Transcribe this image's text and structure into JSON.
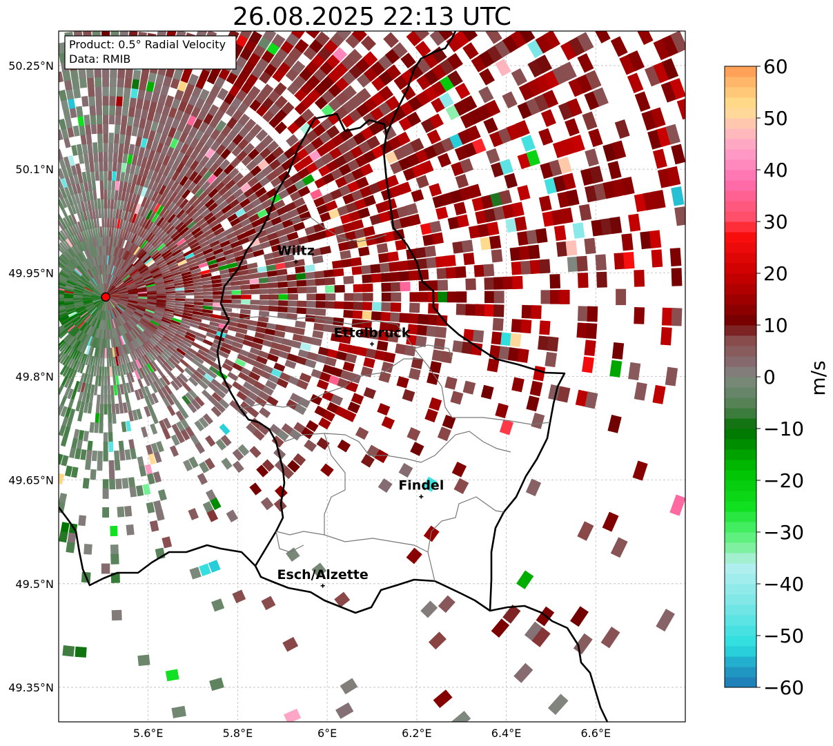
{
  "title": "26.08.2025 22:13 UTC",
  "info_box": {
    "product": "Product: 0.5° Radial Velocity",
    "data": "Data: RMIB"
  },
  "axes": {
    "x_ticks": [
      "5.6°E",
      "5.8°E",
      "6°E",
      "6.2°E",
      "6.4°E",
      "6.6°E"
    ],
    "x_values": [
      5.6,
      5.8,
      6.0,
      6.2,
      6.4,
      6.6
    ],
    "y_ticks": [
      "50.25°N",
      "50.1°N",
      "49.95°N",
      "49.8°N",
      "49.65°N",
      "49.5°N",
      "49.35°N"
    ],
    "y_values": [
      50.25,
      50.1,
      49.95,
      49.8,
      49.65,
      49.5,
      49.35
    ],
    "lon_range": [
      5.4,
      6.8
    ],
    "lat_range": [
      49.3,
      50.3
    ],
    "grid": true
  },
  "radar_site": {
    "lon": 5.505,
    "lat": 49.915,
    "color": "#ff0000"
  },
  "cities": [
    {
      "name": "Wiltz",
      "lon": 5.93,
      "lat": 49.966
    },
    {
      "name": "Ettelbruck",
      "lon": 6.1,
      "lat": 49.847
    },
    {
      "name": "Findel",
      "lon": 6.21,
      "lat": 49.626
    },
    {
      "name": "Esch/Alzette",
      "lon": 5.99,
      "lat": 49.497
    }
  ],
  "colorbar": {
    "label": "m/s",
    "min": -60,
    "max": 60,
    "ticks": [
      "60",
      "50",
      "40",
      "30",
      "20",
      "10",
      "0",
      "−10",
      "−20",
      "−30",
      "−40",
      "−50",
      "−60"
    ],
    "tick_values": [
      60,
      50,
      40,
      30,
      20,
      10,
      0,
      -10,
      -20,
      -30,
      -40,
      -50,
      -60
    ],
    "colors": [
      {
        "v": -60,
        "c": "#1f77b4"
      },
      {
        "v": -56,
        "c": "#20a0c8"
      },
      {
        "v": -52,
        "c": "#2adede"
      },
      {
        "v": -44,
        "c": "#7ae6e6"
      },
      {
        "v": -36,
        "c": "#b8f0f0"
      },
      {
        "v": -34,
        "c": "#8ef0b0"
      },
      {
        "v": -30,
        "c": "#50f070"
      },
      {
        "v": -25,
        "c": "#10e020"
      },
      {
        "v": -18,
        "c": "#00c000"
      },
      {
        "v": -10,
        "c": "#007000"
      },
      {
        "v": -6,
        "c": "#4f8050"
      },
      {
        "v": 0,
        "c": "#7f8a7f"
      },
      {
        "v": 2,
        "c": "#857075"
      },
      {
        "v": 8,
        "c": "#8a4545"
      },
      {
        "v": 10,
        "c": "#700000"
      },
      {
        "v": 20,
        "c": "#cc0000"
      },
      {
        "v": 28,
        "c": "#ff1010"
      },
      {
        "v": 30,
        "c": "#ff4a60"
      },
      {
        "v": 38,
        "c": "#ff70b0"
      },
      {
        "v": 44,
        "c": "#ffa0c8"
      },
      {
        "v": 48,
        "c": "#ffc0b8"
      },
      {
        "v": 52,
        "c": "#ffe090"
      },
      {
        "v": 56,
        "c": "#ffc070"
      },
      {
        "v": 60,
        "c": "#ff9850"
      }
    ]
  },
  "velocity_scan": {
    "range_km": 105,
    "gates": 70,
    "azimuth_step_deg": 2
  }
}
